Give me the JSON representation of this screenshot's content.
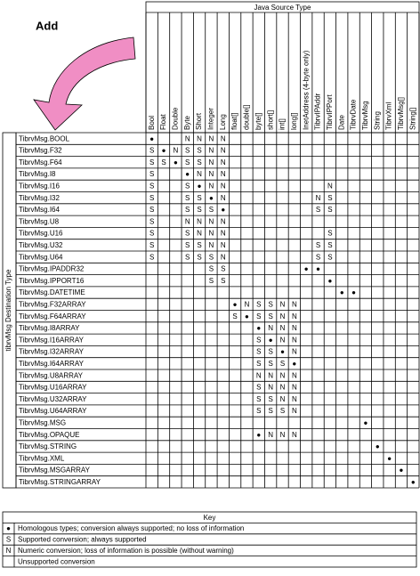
{
  "annotation": "Add",
  "source_header": "Java Source Type",
  "dest_header": "tibrvMsg Destination Type",
  "columns": [
    "Bool",
    "Float",
    "Double",
    "Byte",
    "Short",
    "Integer",
    "Long",
    "float[]",
    "double[]",
    "byte[]",
    "short[]",
    "int[]",
    "long[]",
    "InetAddress (4-byte only)",
    "TibrvIPAddr",
    "TibrvIPPort",
    "Date",
    "TibrvDate",
    "TibrvMsg",
    "String",
    "TibrvXml",
    "TibrvMsg[]",
    "String[]"
  ],
  "rows": [
    {
      "label": "TibrvMsg.BOOL",
      "cells": [
        "●",
        null,
        null,
        "N",
        "N",
        "N",
        "N",
        null,
        null,
        null,
        null,
        null,
        null,
        null,
        null,
        null,
        null,
        null,
        null,
        null,
        null,
        null,
        null
      ]
    },
    {
      "label": "TibrvMsg.F32",
      "cells": [
        "S",
        "●",
        "N",
        "S",
        "S",
        "N",
        "N",
        null,
        null,
        null,
        null,
        null,
        null,
        null,
        null,
        null,
        null,
        null,
        null,
        null,
        null,
        null,
        null
      ]
    },
    {
      "label": "TibrvMsg.F64",
      "cells": [
        "S",
        "S",
        "●",
        "S",
        "S",
        "N",
        "N",
        null,
        null,
        null,
        null,
        null,
        null,
        null,
        null,
        null,
        null,
        null,
        null,
        null,
        null,
        null,
        null
      ]
    },
    {
      "label": "TibrvMsg.I8",
      "cells": [
        "S",
        null,
        null,
        "●",
        "N",
        "N",
        "N",
        null,
        null,
        null,
        null,
        null,
        null,
        null,
        null,
        null,
        null,
        null,
        null,
        null,
        null,
        null,
        null
      ]
    },
    {
      "label": "TibrvMsg.I16",
      "cells": [
        "S",
        null,
        null,
        "S",
        "●",
        "N",
        "N",
        null,
        null,
        null,
        null,
        null,
        null,
        null,
        null,
        "N",
        null,
        null,
        null,
        null,
        null,
        null,
        null
      ]
    },
    {
      "label": "TibrvMsg.I32",
      "cells": [
        "S",
        null,
        null,
        "S",
        "S",
        "●",
        "N",
        null,
        null,
        null,
        null,
        null,
        null,
        null,
        "N",
        "S",
        null,
        null,
        null,
        null,
        null,
        null,
        null
      ]
    },
    {
      "label": "TibrvMsg.I64",
      "cells": [
        "S",
        null,
        null,
        "S",
        "S",
        "S",
        "●",
        null,
        null,
        null,
        null,
        null,
        null,
        null,
        "S",
        "S",
        null,
        null,
        null,
        null,
        null,
        null,
        null
      ]
    },
    {
      "label": "TibrvMsg.U8",
      "cells": [
        "S",
        null,
        null,
        "N",
        "N",
        "N",
        "N",
        null,
        null,
        null,
        null,
        null,
        null,
        null,
        null,
        null,
        null,
        null,
        null,
        null,
        null,
        null,
        null
      ]
    },
    {
      "label": "TibrvMsg.U16",
      "cells": [
        "S",
        null,
        null,
        "S",
        "N",
        "N",
        "N",
        null,
        null,
        null,
        null,
        null,
        null,
        null,
        null,
        "S",
        null,
        null,
        null,
        null,
        null,
        null,
        null
      ]
    },
    {
      "label": "TibrvMsg.U32",
      "cells": [
        "S",
        null,
        null,
        "S",
        "S",
        "N",
        "N",
        null,
        null,
        null,
        null,
        null,
        null,
        null,
        "S",
        "S",
        null,
        null,
        null,
        null,
        null,
        null,
        null
      ]
    },
    {
      "label": "TibrvMsg.U64",
      "cells": [
        "S",
        null,
        null,
        "S",
        "S",
        "S",
        "N",
        null,
        null,
        null,
        null,
        null,
        null,
        null,
        "S",
        "S",
        null,
        null,
        null,
        null,
        null,
        null,
        null
      ]
    },
    {
      "label": "TibrvMsg.IPADDR32",
      "cells": [
        null,
        null,
        null,
        null,
        null,
        "S",
        "S",
        null,
        null,
        null,
        null,
        null,
        null,
        "●",
        "●",
        null,
        null,
        null,
        null,
        null,
        null,
        null,
        null
      ]
    },
    {
      "label": "TibrvMsg.IPPORT16",
      "cells": [
        null,
        null,
        null,
        null,
        null,
        "S",
        "S",
        null,
        null,
        null,
        null,
        null,
        null,
        null,
        null,
        "●",
        null,
        null,
        null,
        null,
        null,
        null,
        null
      ]
    },
    {
      "label": "TibrvMsg.DATETIME",
      "cells": [
        null,
        null,
        null,
        null,
        null,
        null,
        null,
        null,
        null,
        null,
        null,
        null,
        null,
        null,
        null,
        null,
        "●",
        "●",
        null,
        null,
        null,
        null,
        null
      ]
    },
    {
      "label": "TibrvMsg.F32ARRAY",
      "cells": [
        null,
        null,
        null,
        null,
        null,
        null,
        null,
        "●",
        "N",
        "S",
        "S",
        "N",
        "N",
        null,
        null,
        null,
        null,
        null,
        null,
        null,
        null,
        null,
        null
      ]
    },
    {
      "label": "TibrvMsg.F64ARRAY",
      "cells": [
        null,
        null,
        null,
        null,
        null,
        null,
        null,
        "S",
        "●",
        "S",
        "S",
        "N",
        "N",
        null,
        null,
        null,
        null,
        null,
        null,
        null,
        null,
        null,
        null
      ]
    },
    {
      "label": "TibrvMsg.I8ARRAY",
      "cells": [
        null,
        null,
        null,
        null,
        null,
        null,
        null,
        null,
        null,
        "●",
        "N",
        "N",
        "N",
        null,
        null,
        null,
        null,
        null,
        null,
        null,
        null,
        null,
        null
      ]
    },
    {
      "label": "TibrvMsg.I16ARRAY",
      "cells": [
        null,
        null,
        null,
        null,
        null,
        null,
        null,
        null,
        null,
        "S",
        "●",
        "N",
        "N",
        null,
        null,
        null,
        null,
        null,
        null,
        null,
        null,
        null,
        null
      ]
    },
    {
      "label": "TibrvMsg.I32ARRAY",
      "cells": [
        null,
        null,
        null,
        null,
        null,
        null,
        null,
        null,
        null,
        "S",
        "S",
        "●",
        "N",
        null,
        null,
        null,
        null,
        null,
        null,
        null,
        null,
        null,
        null
      ]
    },
    {
      "label": "TibrvMsg.I64ARRAY",
      "cells": [
        null,
        null,
        null,
        null,
        null,
        null,
        null,
        null,
        null,
        "S",
        "S",
        "S",
        "●",
        null,
        null,
        null,
        null,
        null,
        null,
        null,
        null,
        null,
        null
      ]
    },
    {
      "label": "TibrvMsg.U8ARRAY",
      "cells": [
        null,
        null,
        null,
        null,
        null,
        null,
        null,
        null,
        null,
        "N",
        "N",
        "N",
        "N",
        null,
        null,
        null,
        null,
        null,
        null,
        null,
        null,
        null,
        null
      ]
    },
    {
      "label": "TibrvMsg.U16ARRAY",
      "cells": [
        null,
        null,
        null,
        null,
        null,
        null,
        null,
        null,
        null,
        "S",
        "N",
        "N",
        "N",
        null,
        null,
        null,
        null,
        null,
        null,
        null,
        null,
        null,
        null
      ]
    },
    {
      "label": "TibrvMsg.U32ARRAY",
      "cells": [
        null,
        null,
        null,
        null,
        null,
        null,
        null,
        null,
        null,
        "S",
        "S",
        "N",
        "N",
        null,
        null,
        null,
        null,
        null,
        null,
        null,
        null,
        null,
        null
      ]
    },
    {
      "label": "TibrvMsg.U64ARRAY",
      "cells": [
        null,
        null,
        null,
        null,
        null,
        null,
        null,
        null,
        null,
        "S",
        "S",
        "S",
        "N",
        null,
        null,
        null,
        null,
        null,
        null,
        null,
        null,
        null,
        null
      ]
    },
    {
      "label": "TibrvMsg.MSG",
      "cells": [
        null,
        null,
        null,
        null,
        null,
        null,
        null,
        null,
        null,
        null,
        null,
        null,
        null,
        null,
        null,
        null,
        null,
        null,
        "●",
        null,
        null,
        null,
        null
      ]
    },
    {
      "label": "TibrvMsg.OPAQUE",
      "cells": [
        null,
        null,
        null,
        null,
        null,
        null,
        null,
        null,
        null,
        "●",
        "N",
        "N",
        "N",
        null,
        null,
        null,
        null,
        null,
        null,
        null,
        null,
        null,
        null
      ]
    },
    {
      "label": "TibrvMsg.STRING",
      "cells": [
        null,
        null,
        null,
        null,
        null,
        null,
        null,
        null,
        null,
        null,
        null,
        null,
        null,
        null,
        null,
        null,
        null,
        null,
        null,
        "●",
        null,
        null,
        null
      ]
    },
    {
      "label": "TibrvMsg.XML",
      "cells": [
        null,
        null,
        null,
        null,
        null,
        null,
        null,
        null,
        null,
        null,
        null,
        null,
        null,
        null,
        null,
        null,
        null,
        null,
        null,
        null,
        "●",
        null,
        null
      ]
    },
    {
      "label": "TibrvMsg.MSGARRAY",
      "cells": [
        null,
        null,
        null,
        null,
        null,
        null,
        null,
        null,
        null,
        null,
        null,
        null,
        null,
        null,
        null,
        null,
        null,
        null,
        null,
        null,
        null,
        "●",
        null
      ]
    },
    {
      "label": "TibrvMsg.STRINGARRAY",
      "cells": [
        null,
        null,
        null,
        null,
        null,
        null,
        null,
        null,
        null,
        null,
        null,
        null,
        null,
        null,
        null,
        null,
        null,
        null,
        null,
        null,
        null,
        null,
        "●"
      ]
    }
  ],
  "key": {
    "title": "Key",
    "items": [
      {
        "symbol": "●",
        "text": "Homologous types; conversion always supported; no loss of information"
      },
      {
        "symbol": "S",
        "text": "Supported conversion; always supported"
      },
      {
        "symbol": "N",
        "text": "Numeric conversion; loss of information is possible (without warning)"
      },
      {
        "text": "Unsupported conversion"
      }
    ]
  }
}
